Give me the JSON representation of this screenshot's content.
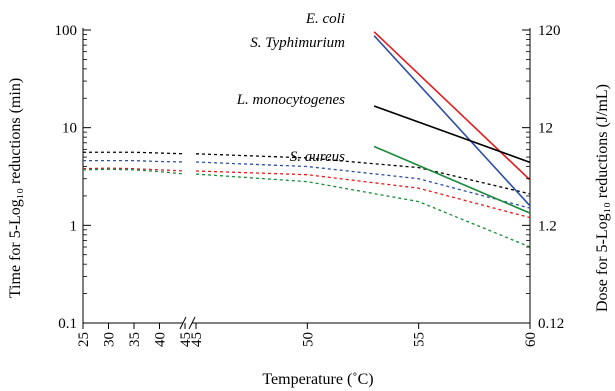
{
  "chart_data": {
    "type": "line",
    "xlabel": "Temperature (˚C)",
    "ylabel_left": "Time for 5-Log₁₀ reductions (min)",
    "ylabel_right": "Dose for 5-Log₁₀ reductions (J/mL)",
    "x_axis": {
      "break_between": [
        45,
        45
      ],
      "segment1": {
        "range": [
          25,
          45
        ],
        "ticks": [
          "25",
          "30",
          "35",
          "40",
          "45"
        ]
      },
      "segment2": {
        "range": [
          45,
          60
        ],
        "ticks": [
          "45",
          "50",
          "55",
          "60"
        ]
      }
    },
    "y_left": {
      "scale": "log",
      "range": [
        0.1,
        100
      ],
      "ticks": [
        "0.1",
        "1",
        "10",
        "100"
      ]
    },
    "y_right": {
      "scale": "log",
      "range": [
        0.12,
        120
      ],
      "ticks": [
        "0.12",
        "1.2",
        "12",
        "120"
      ]
    },
    "series_right_axis_solid": [
      {
        "name": "E. coli",
        "color": "#e41a1c",
        "x": [
          53,
          60
        ],
        "y": [
          115,
          3.5
        ]
      },
      {
        "name": "S. Typhimurium",
        "color": "#2c4fa3",
        "x": [
          53,
          60
        ],
        "y": [
          105,
          1.9
        ]
      },
      {
        "name": "L. monocytogenes",
        "color": "#000000",
        "x": [
          53,
          60
        ],
        "y": [
          20,
          5.3
        ]
      },
      {
        "name": "S. aureus",
        "color": "#1a8a3a",
        "x": [
          53,
          60
        ],
        "y": [
          7.7,
          1.6
        ]
      }
    ],
    "series_left_axis_dotted": [
      {
        "color": "#000000",
        "x": [
          25,
          30,
          35,
          40,
          45,
          45,
          50,
          55,
          60
        ],
        "y": [
          5.6,
          5.6,
          5.6,
          5.5,
          5.4,
          5.4,
          4.9,
          3.9,
          2.1
        ]
      },
      {
        "color": "#2c4fa3",
        "x": [
          25,
          30,
          35,
          40,
          45,
          45,
          50,
          55,
          60
        ],
        "y": [
          4.6,
          4.6,
          4.6,
          4.5,
          4.45,
          4.45,
          4.0,
          3.0,
          1.5
        ]
      },
      {
        "color": "#e41a1c",
        "x": [
          25,
          30,
          35,
          40,
          45,
          45,
          50,
          55,
          60
        ],
        "y": [
          3.8,
          3.85,
          3.8,
          3.7,
          3.6,
          3.6,
          3.3,
          2.4,
          1.2
        ]
      },
      {
        "color": "#1a8a3a",
        "x": [
          25,
          30,
          35,
          40,
          45,
          45,
          50,
          55,
          60
        ],
        "y": [
          3.7,
          3.75,
          3.7,
          3.55,
          3.35,
          3.35,
          2.8,
          1.75,
          0.6
        ]
      }
    ]
  }
}
